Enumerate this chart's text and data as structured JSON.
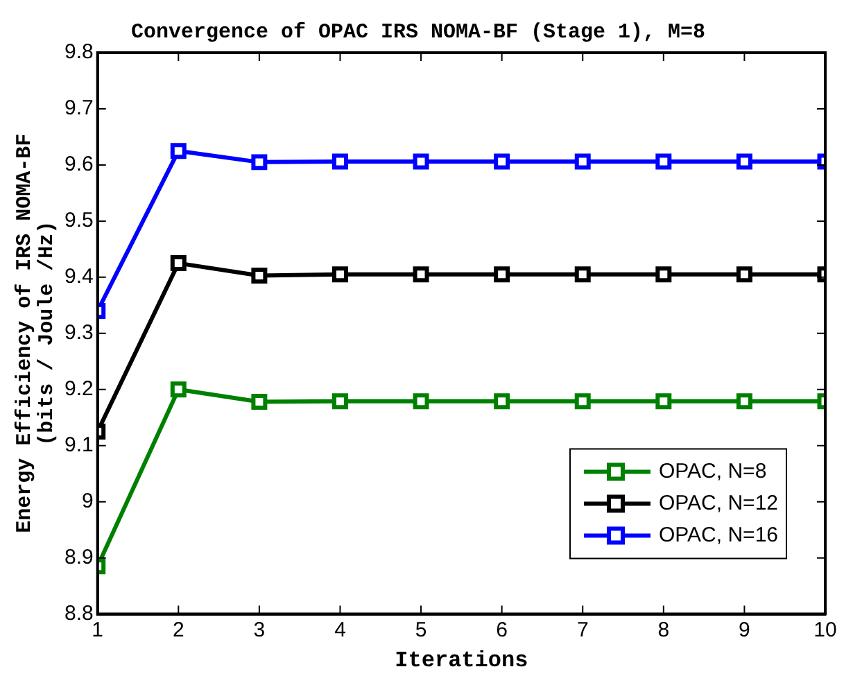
{
  "chart_data": {
    "type": "line",
    "title": "Convergence of OPAC IRS NOMA-BF (Stage 1), M=8",
    "xlabel": "Iterations",
    "ylabel": "Energy Efficiency of IRS NOMA-BF\n(bits / Joule /Hz)",
    "x": [
      1,
      2,
      3,
      4,
      5,
      6,
      7,
      8,
      9,
      10
    ],
    "series": [
      {
        "name": "OPAC, N=8",
        "color": "#008000",
        "values": [
          8.885,
          9.2,
          9.178,
          9.179,
          9.179,
          9.179,
          9.179,
          9.179,
          9.179,
          9.179
        ]
      },
      {
        "name": "OPAC, N=12",
        "color": "#000000",
        "values": [
          9.125,
          9.425,
          9.403,
          9.405,
          9.405,
          9.405,
          9.405,
          9.405,
          9.405,
          9.405
        ]
      },
      {
        "name": "OPAC, N=16",
        "color": "#0000ff",
        "values": [
          9.34,
          9.625,
          9.605,
          9.606,
          9.606,
          9.606,
          9.606,
          9.606,
          9.606,
          9.606
        ]
      }
    ],
    "xlim": [
      1,
      10
    ],
    "xticks": [
      1,
      2,
      3,
      4,
      5,
      6,
      7,
      8,
      9,
      10
    ],
    "ylim": [
      8.8,
      9.8
    ],
    "yticks": [
      8.8,
      8.9,
      9,
      9.1,
      9.2,
      9.3,
      9.4,
      9.5,
      9.6,
      9.7,
      9.8
    ],
    "grid": false,
    "legend": "bottom right",
    "marker": "square",
    "line_style": "solid"
  }
}
